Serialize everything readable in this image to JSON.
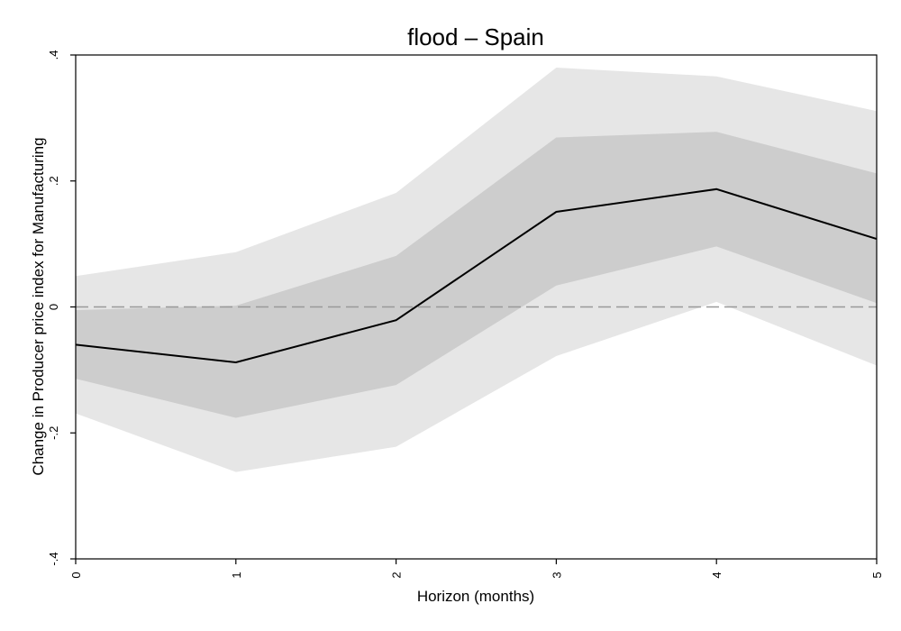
{
  "chart_data": {
    "type": "line",
    "title": "flood – Spain",
    "xlabel": "Horizon (months)",
    "ylabel": "Change in Producer price index for Manufacturing",
    "xlim": [
      0,
      5
    ],
    "ylim": [
      -0.4,
      0.4
    ],
    "x_ticks": [
      {
        "value": 0,
        "label": "0"
      },
      {
        "value": 1,
        "label": "1"
      },
      {
        "value": 2,
        "label": "2"
      },
      {
        "value": 3,
        "label": "3"
      },
      {
        "value": 4,
        "label": "4"
      },
      {
        "value": 5,
        "label": "5"
      }
    ],
    "y_ticks": [
      {
        "value": -0.4,
        "label": "-.4"
      },
      {
        "value": -0.2,
        "label": "-.2"
      },
      {
        "value": 0,
        "label": "0"
      },
      {
        "value": 0.2,
        "label": ".2"
      },
      {
        "value": 0.4,
        "label": ".4"
      }
    ],
    "x": [
      0,
      1,
      2,
      3,
      4,
      5
    ],
    "series": [
      {
        "values": [
          -0.06,
          -0.088,
          -0.021,
          0.151,
          0.187,
          0.108
        ]
      }
    ],
    "bands": [
      {
        "lower": [
          -0.169,
          -0.262,
          -0.222,
          -0.078,
          0.008,
          -0.093
        ],
        "upper": [
          0.049,
          0.087,
          0.181,
          0.38,
          0.366,
          0.311
        ],
        "color": "#e6e6e6"
      },
      {
        "lower": [
          -0.114,
          -0.176,
          -0.124,
          0.034,
          0.096,
          0.006
        ],
        "upper": [
          -0.005,
          0.002,
          0.081,
          0.269,
          0.278,
          0.212
        ],
        "color": "#cdcdcd"
      }
    ],
    "reference_line": {
      "y": 0,
      "color": "#999999",
      "style": "dashed"
    },
    "line_color": "#000000",
    "grid": false,
    "legend": "none"
  }
}
